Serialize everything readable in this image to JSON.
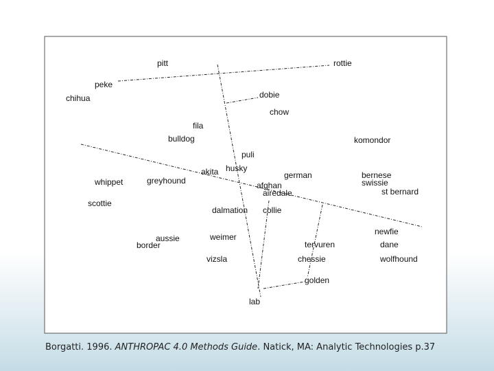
{
  "nodes": [
    {
      "label": "pitt"
    },
    {
      "label": "rottie"
    },
    {
      "label": "peke"
    },
    {
      "label": "chihua"
    },
    {
      "label": "dobie"
    },
    {
      "label": "chow"
    },
    {
      "label": "fila"
    },
    {
      "label": "bulldog"
    },
    {
      "label": "komondor"
    },
    {
      "label": "puli"
    },
    {
      "label": "akita"
    },
    {
      "label": "husky"
    },
    {
      "label": "german"
    },
    {
      "label": "bernese"
    },
    {
      "label": "swissie"
    },
    {
      "label": "whippet"
    },
    {
      "label": "greyhound"
    },
    {
      "label": "afghan"
    },
    {
      "label": "airedale"
    },
    {
      "label": "st bernard"
    },
    {
      "label": "scottie"
    },
    {
      "label": "dalmation"
    },
    {
      "label": "collie"
    },
    {
      "label": "newfie"
    },
    {
      "label": "aussie"
    },
    {
      "label": "border"
    },
    {
      "label": "weimer"
    },
    {
      "label": "tervuren"
    },
    {
      "label": "dane"
    },
    {
      "label": "vizsla"
    },
    {
      "label": "chessie"
    },
    {
      "label": "wolfhound"
    },
    {
      "label": "golden"
    },
    {
      "label": "lab"
    }
  ],
  "caption": [
    "Borgatti. 1996. ",
    "ANTHROPAC 4.0 Methods Guide",
    ". Natick, MA: Analytic Technologies p.37"
  ]
}
